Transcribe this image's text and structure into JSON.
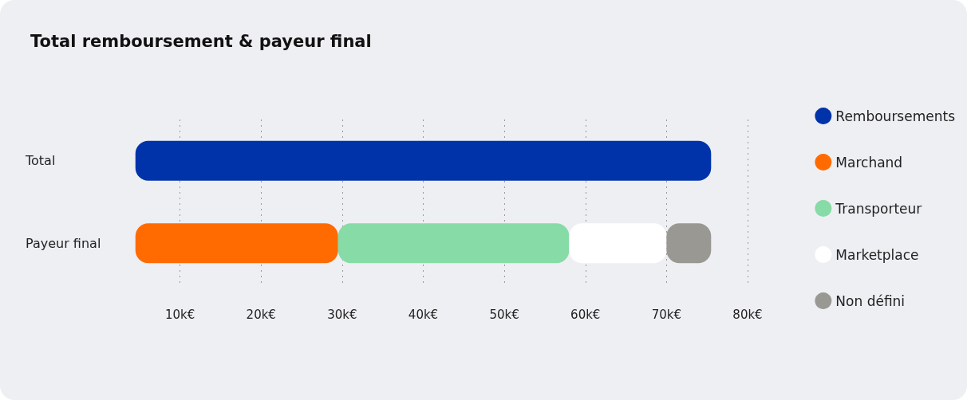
{
  "chart_data": {
    "type": "bar",
    "title": "Total remboursement & payeur final",
    "orientation": "horizontal",
    "categories": [
      "Total",
      "Payeur final"
    ],
    "series": [
      {
        "name": "Remboursements",
        "color": "#0033aa",
        "values": [
          71,
          null
        ],
        "base": [
          4.5,
          null
        ]
      },
      {
        "name": "Marchand",
        "color": "#ff6b00",
        "values": [
          null,
          25
        ],
        "base": [
          null,
          4.5
        ]
      },
      {
        "name": "Transporteur",
        "color": "#86dba6",
        "values": [
          null,
          28.5
        ],
        "base": [
          null,
          29.5
        ]
      },
      {
        "name": "Marketplace",
        "color": "#ffffff",
        "values": [
          null,
          12
        ],
        "base": [
          null,
          58
        ]
      },
      {
        "name": "Non défini",
        "color": "#999893",
        "values": [
          null,
          5.5
        ],
        "base": [
          null,
          70
        ]
      }
    ],
    "xlim": [
      0,
      80
    ],
    "xticks": [
      {
        "value": 10,
        "label": "10k€"
      },
      {
        "value": 20,
        "label": "20k€"
      },
      {
        "value": 30,
        "label": "30k€"
      },
      {
        "value": 40,
        "label": "40k€"
      },
      {
        "value": 50,
        "label": "50k€"
      },
      {
        "value": 60,
        "label": "60k€"
      },
      {
        "value": 70,
        "label": "70k€"
      },
      {
        "value": 80,
        "label": "80k€"
      }
    ],
    "grid": "x",
    "legend": "right"
  }
}
